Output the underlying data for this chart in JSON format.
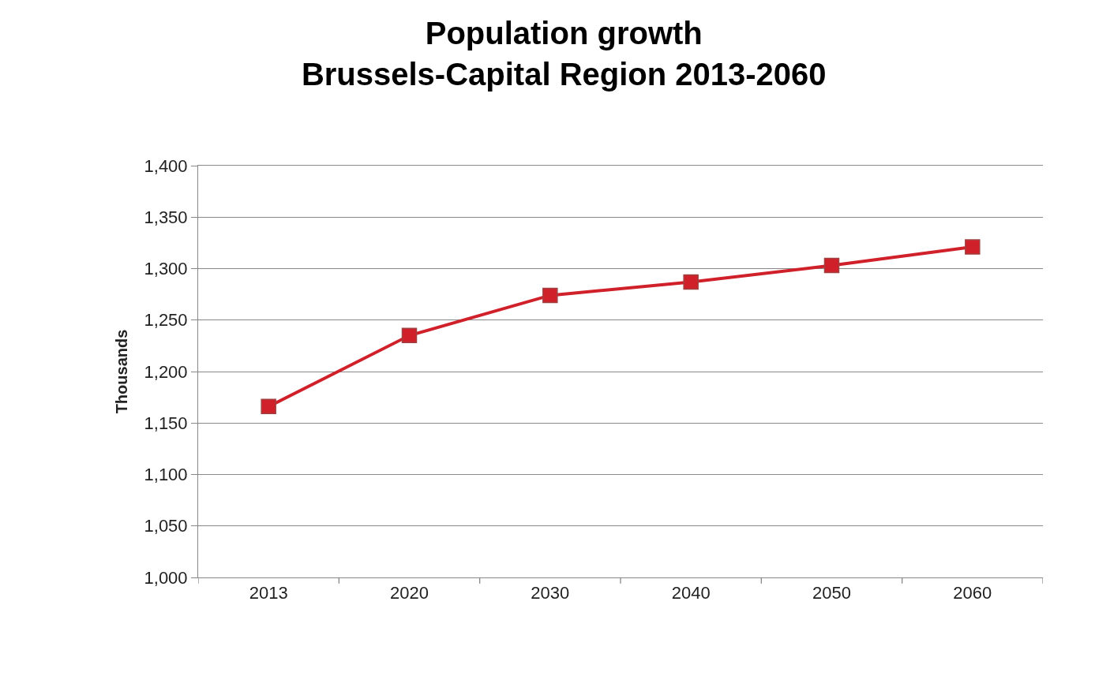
{
  "chart_data": {
    "type": "line",
    "title": "Population growth\nBrussels-Capital Region 2013-2060",
    "ylabel": "Thousands",
    "categories": [
      "2013",
      "2020",
      "2030",
      "2040",
      "2050",
      "2060"
    ],
    "series": [
      {
        "color": "#d0202a",
        "values": [
          1166,
          1235,
          1274,
          1287,
          1303,
          1321
        ]
      }
    ],
    "ylim": [
      1000,
      1400
    ],
    "yticks": [
      {
        "value": 1000,
        "label": "1,000"
      },
      {
        "value": 1050,
        "label": "1,050"
      },
      {
        "value": 1100,
        "label": "1,100"
      },
      {
        "value": 1150,
        "label": "1,150"
      },
      {
        "value": 1200,
        "label": "1,200"
      },
      {
        "value": 1250,
        "label": "1,250"
      },
      {
        "value": 1300,
        "label": "1,300"
      },
      {
        "value": 1350,
        "label": "1,350"
      },
      {
        "value": 1400,
        "label": "1,400"
      }
    ],
    "grid": "y",
    "marker": "square",
    "line_style": "solid"
  }
}
